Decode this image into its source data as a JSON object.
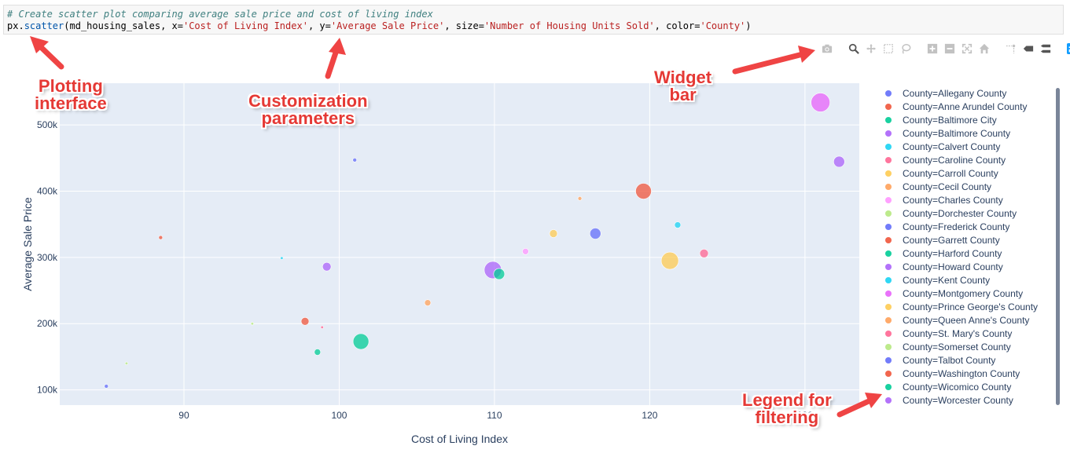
{
  "code": {
    "comment": "# Create scatter plot comparing average sale price and cost of living index",
    "prefix": "px.",
    "func": "scatter",
    "args_open": "(md_housing_sales, x=",
    "x_str": "'Cost of Living Index'",
    "sep1": ", y=",
    "y_str": "'Average Sale Price'",
    "sep2": ", size=",
    "size_str": "'Number of Housing Units Sold'",
    "sep3": ", color=",
    "color_str": "'County'",
    "close": ")"
  },
  "modebar": {
    "buttons": [
      "camera-icon",
      "zoom-icon",
      "pan-icon",
      "box-select-icon",
      "lasso-icon",
      "zoom-in-icon",
      "zoom-out-icon",
      "autoscale-icon",
      "home-icon",
      "spike-lines-icon",
      "hover-closest-icon",
      "hover-compare-icon",
      "plotly-logo-icon"
    ]
  },
  "annotations": {
    "plotting": "Plotting\ninterface",
    "customization": "Customization\nparameters",
    "widget": "Widget\nbar",
    "legend": "Legend for\nfiltering"
  },
  "chart_data": {
    "type": "scatter",
    "title": "",
    "xlabel": "Cost of Living Index",
    "ylabel": "Average Sale Price",
    "xlim": [
      82,
      133.5
    ],
    "ylim": [
      77000,
      563000
    ],
    "xticks": [
      90,
      100,
      110,
      120,
      130
    ],
    "xtick_labels": [
      "90",
      "100",
      "110",
      "120",
      "130"
    ],
    "yticks": [
      100000,
      200000,
      300000,
      400000,
      500000
    ],
    "ytick_labels": [
      "100k",
      "200k",
      "300k",
      "400k",
      "500k"
    ],
    "grid": true,
    "legend_position": "right",
    "legend_prefix": "County=",
    "series": [
      {
        "name": "Allegany County",
        "color": "#636efa",
        "x": 85.0,
        "y": 105500,
        "size": 2.5
      },
      {
        "name": "Anne Arundel County",
        "color": "#EF553B",
        "x": 119.6,
        "y": 400000,
        "size": 10
      },
      {
        "name": "Baltimore City",
        "color": "#00cc96",
        "x": 101.4,
        "y": 173000,
        "size": 10
      },
      {
        "name": "Baltimore County",
        "color": "#ab63fa",
        "x": 109.9,
        "y": 281000,
        "size": 11
      },
      {
        "name": "Calvert County",
        "color": "#19d3f3",
        "x": 121.8,
        "y": 349000,
        "size": 4
      },
      {
        "name": "Caroline County",
        "color": "#FF6692",
        "x": 98.9,
        "y": 194500,
        "size": 1.8
      },
      {
        "name": "Carroll County",
        "color": "#FECB52",
        "x": 113.8,
        "y": 336000,
        "size": 5
      },
      {
        "name": "Cecil County",
        "color": "#FFA15A",
        "x": 105.7,
        "y": 231500,
        "size": 4
      },
      {
        "name": "Charles County",
        "color": "#FF97FF",
        "x": 112.0,
        "y": 309000,
        "size": 4
      },
      {
        "name": "Dorchester County",
        "color": "#B6E880",
        "x": 86.3,
        "y": 140000,
        "size": 1.8
      },
      {
        "name": "Frederick County",
        "color": "#636efa",
        "x": 116.5,
        "y": 336000,
        "size": 7
      },
      {
        "name": "Garrett County",
        "color": "#EF553B",
        "x": 88.5,
        "y": 330000,
        "size": 2.5
      },
      {
        "name": "Harford County",
        "color": "#00cc96",
        "x": 110.3,
        "y": 275000,
        "size": 7
      },
      {
        "name": "Howard County",
        "color": "#ab63fa",
        "x": 132.2,
        "y": 444500,
        "size": 7
      },
      {
        "name": "Kent County",
        "color": "#19d3f3",
        "x": 96.3,
        "y": 299000,
        "size": 1.8
      },
      {
        "name": "Montgomery County",
        "color": "#e763fa",
        "x": 131.0,
        "y": 534000,
        "size": 12
      },
      {
        "name": "Prince George's County",
        "color": "#FECB52",
        "x": 121.3,
        "y": 295000,
        "size": 11
      },
      {
        "name": "Queen Anne's County",
        "color": "#FFA15A",
        "x": 115.5,
        "y": 389000,
        "size": 2.5
      },
      {
        "name": "St. Mary's County",
        "color": "#FF6692",
        "x": 123.5,
        "y": 306000,
        "size": 5.5
      },
      {
        "name": "Somerset County",
        "color": "#B6E880",
        "x": 94.4,
        "y": 200000,
        "size": 1.8
      },
      {
        "name": "Talbot County",
        "color": "#636efa",
        "x": 101.0,
        "y": 447000,
        "size": 2.5
      },
      {
        "name": "Washington County",
        "color": "#EF553B",
        "x": 97.8,
        "y": 203500,
        "size": 5
      },
      {
        "name": "Wicomico County",
        "color": "#00cc96",
        "x": 98.6,
        "y": 157000,
        "size": 4
      },
      {
        "name": "Worcester County",
        "color": "#ab63fa",
        "x": 99.2,
        "y": 286000,
        "size": 5.5
      }
    ]
  }
}
